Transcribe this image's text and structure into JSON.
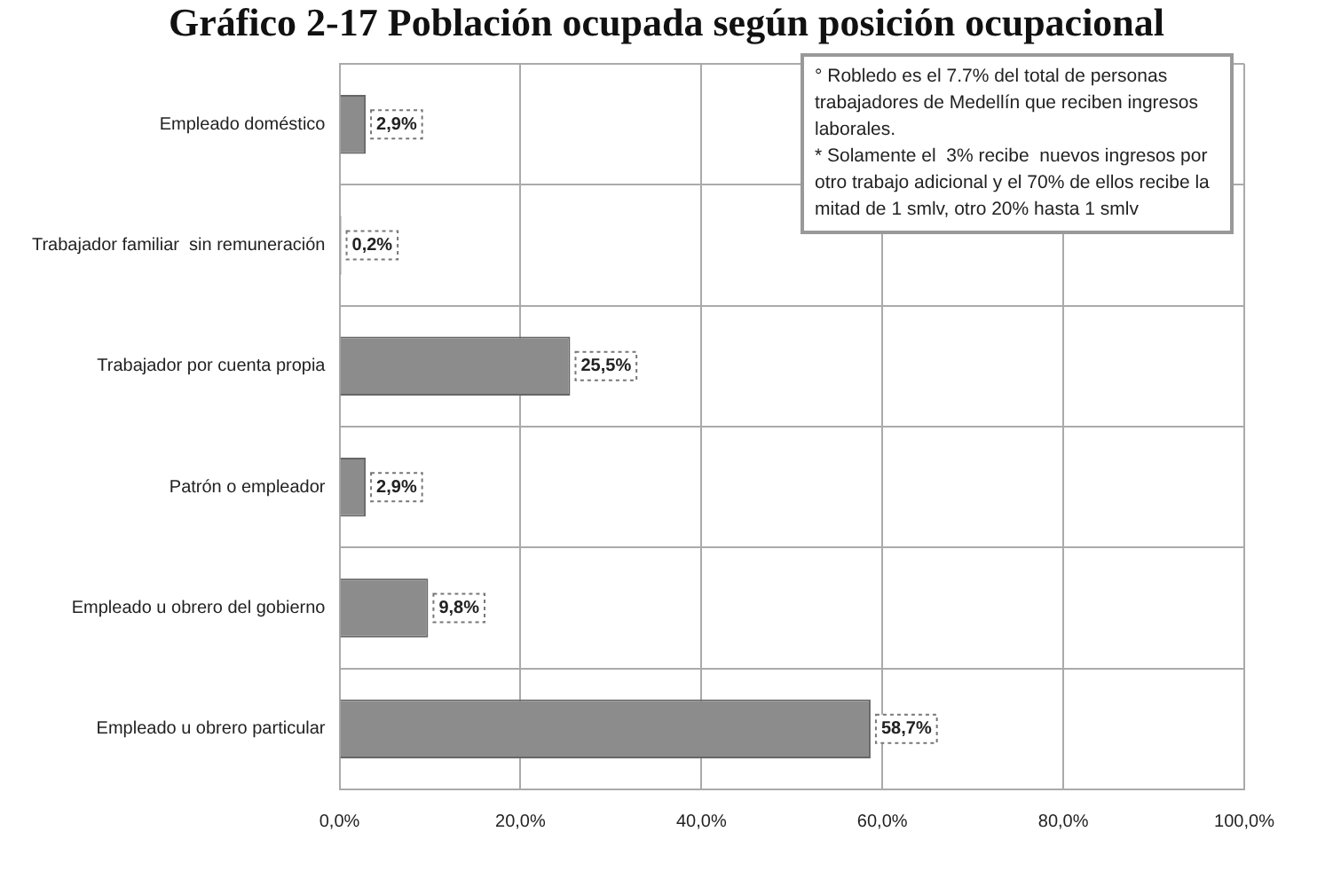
{
  "chart_data": {
    "type": "bar",
    "orientation": "horizontal",
    "title": "Gráfico 2-17 Población ocupada según posición ocupacional",
    "categories": [
      "Empleado doméstico",
      "Trabajador familiar  sin remuneración",
      "Trabajador por cuenta propia",
      "Patrón o empleador",
      "Empleado u obrero del gobierno",
      "Empleado u obrero particular"
    ],
    "values": [
      2.9,
      0.2,
      25.5,
      2.9,
      9.8,
      58.7
    ],
    "value_labels": [
      "2,9%",
      "0,2%",
      "25,5%",
      "2,9%",
      "9,8%",
      "58,7%"
    ],
    "color": "#8c8c8c",
    "xlim": [
      0,
      100
    ],
    "xticks": [
      {
        "value": 0,
        "label": "0,0%"
      },
      {
        "value": 20,
        "label": "20,0%"
      },
      {
        "value": 40,
        "label": "40,0%"
      },
      {
        "value": 60,
        "label": "60,0%"
      },
      {
        "value": 80,
        "label": "80,0%"
      },
      {
        "value": 100,
        "label": "100,0%"
      }
    ],
    "grid": true,
    "annotations": [
      "° Robledo es el 7.7% del total de personas trabajadores de Medellín que reciben ingresos laborales.\n* Solamente el  3% recibe  nuevos ingresos por otro trabajo adicional y el 70% de ellos recibe la mitad de 1 smlv, otro 20% hasta 1 smlv"
    ]
  }
}
